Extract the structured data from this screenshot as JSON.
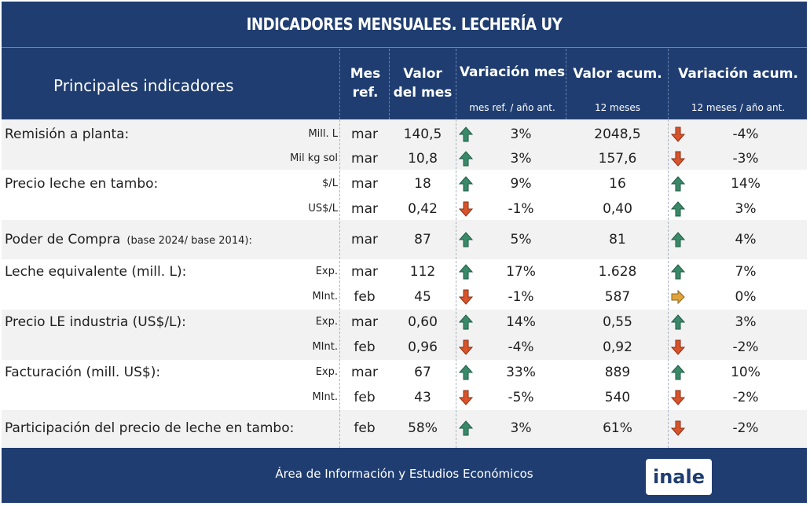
{
  "title": "INDICADORES MENSUALES. LECHERÍA UY",
  "header": {
    "main": "Principales indicadores",
    "mes_ref": "Mes ref.",
    "valor": "Valor del mes",
    "var_mes": "Variación mes",
    "var_mes_sub": "mes ref. / año ant.",
    "valor_acum": "Valor acum.",
    "valor_acum_sub": "12 meses",
    "var_acum": "Variación acum.",
    "var_acum_sub": "12 meses / año ant."
  },
  "colors": {
    "header_bg": "#1f3d70",
    "band": "#f2f2f2",
    "up": "#3a8a6a",
    "down": "#d9532b",
    "flat": "#e0a33a"
  },
  "chart_data": {
    "type": "table",
    "columns": [
      "Principales indicadores",
      "",
      "Mes ref.",
      "Valor del mes",
      "Variación mes",
      "Valor acum.",
      "Variación acum."
    ],
    "rows": [
      {
        "label": "Remisión a planta:",
        "unit": "Mill. L",
        "mes": "mar",
        "valor": "140,5",
        "var_mes_dir": "up",
        "var_mes": "3%",
        "acum": "2048,5",
        "var_acum_dir": "down",
        "var_acum": "-4%"
      },
      {
        "label": "",
        "unit": "Mil kg sol",
        "mes": "mar",
        "valor": "10,8",
        "var_mes_dir": "up",
        "var_mes": "3%",
        "acum": "157,6",
        "var_acum_dir": "down",
        "var_acum": "-3%"
      },
      {
        "label": "Precio leche en tambo:",
        "unit": "$/L",
        "mes": "mar",
        "valor": "18",
        "var_mes_dir": "up",
        "var_mes": "9%",
        "acum": "16",
        "var_acum_dir": "up",
        "var_acum": "14%"
      },
      {
        "label": "",
        "unit": "US$/L",
        "mes": "mar",
        "valor": "0,42",
        "var_mes_dir": "down",
        "var_mes": "-1%",
        "acum": "0,40",
        "var_acum_dir": "up",
        "var_acum": "3%"
      },
      {
        "label": "Poder de Compra",
        "note": "(base 2024/ base 2014):",
        "unit": "",
        "mes": "mar",
        "valor": "87",
        "var_mes_dir": "up",
        "var_mes": "5%",
        "acum": "81",
        "var_acum_dir": "up",
        "var_acum": "4%"
      },
      {
        "label": "Leche equivalente (mill. L):",
        "unit": "Exp.",
        "mes": "mar",
        "valor": "112",
        "var_mes_dir": "up",
        "var_mes": "17%",
        "acum": "1.628",
        "var_acum_dir": "up",
        "var_acum": "7%"
      },
      {
        "label": "",
        "unit": "MInt.",
        "mes": "feb",
        "valor": "45",
        "var_mes_dir": "down",
        "var_mes": "-1%",
        "acum": "587",
        "var_acum_dir": "flat",
        "var_acum": "0%"
      },
      {
        "label": "Precio LE industria (US$/L):",
        "unit": "Exp.",
        "mes": "mar",
        "valor": "0,60",
        "var_mes_dir": "up",
        "var_mes": "14%",
        "acum": "0,55",
        "var_acum_dir": "up",
        "var_acum": "3%"
      },
      {
        "label": "",
        "unit": "MInt.",
        "mes": "feb",
        "valor": "0,96",
        "var_mes_dir": "down",
        "var_mes": "-4%",
        "acum": "0,92",
        "var_acum_dir": "down",
        "var_acum": "-2%"
      },
      {
        "label": "Facturación (mill. US$):",
        "unit": "Exp.",
        "mes": "mar",
        "valor": "67",
        "var_mes_dir": "up",
        "var_mes": "33%",
        "acum": "889",
        "var_acum_dir": "up",
        "var_acum": "10%"
      },
      {
        "label": "",
        "unit": "MInt.",
        "mes": "feb",
        "valor": "43",
        "var_mes_dir": "down",
        "var_mes": "-5%",
        "acum": "540",
        "var_acum_dir": "down",
        "var_acum": "-2%"
      },
      {
        "label": "Participación del precio de leche en tambo:",
        "unit": "",
        "mes": "feb",
        "valor": "58%",
        "var_mes_dir": "up",
        "var_mes": "3%",
        "acum": "61%",
        "var_acum_dir": "down",
        "var_acum": "-2%"
      }
    ]
  },
  "footer": {
    "text": "Área de Información y Estudios Económicos",
    "logo": "inale"
  }
}
